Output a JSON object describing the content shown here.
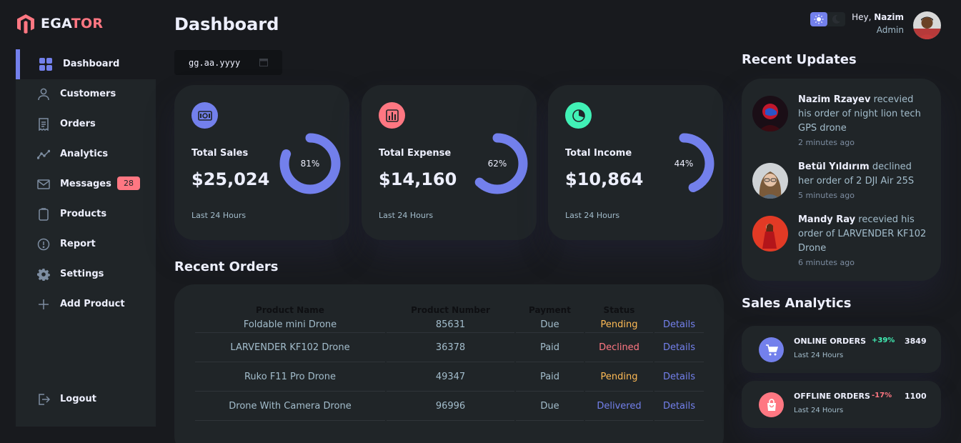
{
  "brand": {
    "part1": "EGA",
    "part2": "TOR",
    "accent": "#ff7782"
  },
  "sidebar": {
    "items": [
      {
        "label": "Dashboard",
        "icon": "grid-icon",
        "active": true
      },
      {
        "label": "Customers",
        "icon": "person-icon"
      },
      {
        "label": "Orders",
        "icon": "receipt-icon"
      },
      {
        "label": "Analytics",
        "icon": "insights-icon"
      },
      {
        "label": "Messages",
        "icon": "mail-icon",
        "count": "28"
      },
      {
        "label": "Products",
        "icon": "inventory-icon"
      },
      {
        "label": "Report",
        "icon": "report-icon"
      },
      {
        "label": "Settings",
        "icon": "gear-icon"
      },
      {
        "label": "Add Product",
        "icon": "plus-icon"
      },
      {
        "label": "Logout",
        "icon": "logout-icon"
      }
    ]
  },
  "header": {
    "title": "Dashboard"
  },
  "date_input": {
    "placeholder": "gg.aa.yyyy"
  },
  "cards": [
    {
      "title": "Total Sales",
      "value": "$25,024",
      "percent": 81,
      "percent_label": "81%",
      "time": "Last 24 Hours",
      "icon": "money-icon",
      "color": "#7380ec"
    },
    {
      "title": "Total Expense",
      "value": "$14,160",
      "percent": 62,
      "percent_label": "62%",
      "time": "Last 24 Hours",
      "icon": "bar-chart-icon",
      "color": "#ff7782"
    },
    {
      "title": "Total Income",
      "value": "$10,864",
      "percent": 44,
      "percent_label": "44%",
      "time": "Last 24 Hours",
      "icon": "pie-chart-icon",
      "color": "#41f1b6"
    }
  ],
  "recent_orders": {
    "title": "Recent Orders",
    "columns": [
      "Product Name",
      "Product Number",
      "Payment",
      "Status",
      ""
    ],
    "rows": [
      {
        "name": "Foldable mini Drone",
        "number": "85631",
        "payment": "Due",
        "status": "Pending",
        "action": "Details"
      },
      {
        "name": "LARVENDER KF102 Drone",
        "number": "36378",
        "payment": "Paid",
        "status": "Declined",
        "action": "Details"
      },
      {
        "name": "Ruko F11 Pro Drone",
        "number": "49347",
        "payment": "Paid",
        "status": "Pending",
        "action": "Details"
      },
      {
        "name": "Drone With Camera Drone",
        "number": "96996",
        "payment": "Due",
        "status": "Delivered",
        "action": "Details"
      }
    ]
  },
  "profile": {
    "greeting": "Hey,",
    "name": "Nazim",
    "role": "Admin"
  },
  "recent_updates": {
    "title": "Recent Updates",
    "items": [
      {
        "name": "Nazim Rzayev",
        "text": " recevied his order of night lion tech GPS drone",
        "time": "2 minutes ago"
      },
      {
        "name": "Betül Yıldırım",
        "text": " declined her order of 2 DJI Air 25S",
        "time": "5 minutes ago"
      },
      {
        "name": "Mandy Ray",
        "text": " recevied his order of LARVENDER KF102 Drone",
        "time": "6 minutes ago"
      }
    ]
  },
  "sales_analytics": {
    "title": "Sales Analytics",
    "items": [
      {
        "name": "ONLINE ORDERS",
        "percent": "+39%",
        "value": "3849",
        "time": "Last 24 Hours",
        "icon": "cart-icon",
        "color": "#7380ec",
        "pct_color": "#41f1b6"
      },
      {
        "name": "OFFLINE ORDERS",
        "percent": "-17%",
        "value": "1100",
        "time": "Last 24 Hours",
        "icon": "shopping-bag-icon",
        "color": "#ff7782",
        "pct_color": "#ff7782"
      }
    ]
  }
}
